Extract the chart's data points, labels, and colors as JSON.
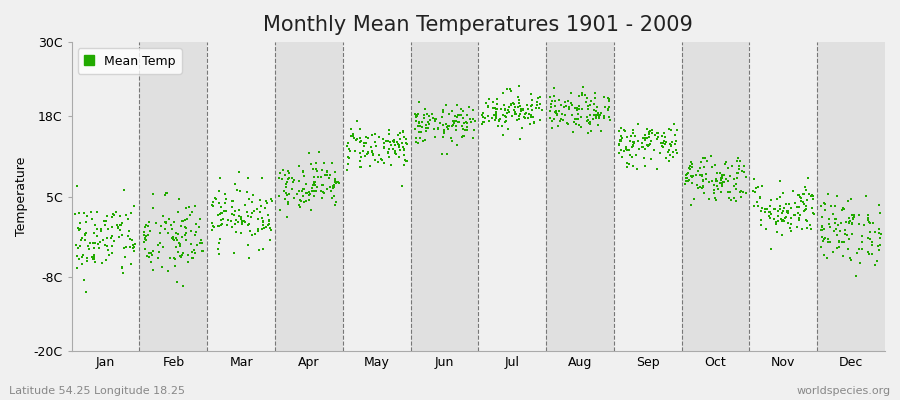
{
  "title": "Monthly Mean Temperatures 1901 - 2009",
  "ylabel": "Temperature",
  "xlabel_labels": [
    "Jan",
    "Feb",
    "Mar",
    "Apr",
    "May",
    "Jun",
    "Jul",
    "Aug",
    "Sep",
    "Oct",
    "Nov",
    "Dec"
  ],
  "ylim": [
    -20,
    30
  ],
  "yticks": [
    -20,
    -8,
    5,
    18,
    30
  ],
  "ytick_labels": [
    "-20C",
    "-8C",
    "5C",
    "18C",
    "30C"
  ],
  "dot_color": "#22aa00",
  "dot_size": 3,
  "legend_label": "Mean Temp",
  "footnote_left": "Latitude 54.25 Longitude 18.25",
  "footnote_right": "worldspecies.org",
  "background_color": "#f0f0f0",
  "band_color_light": "#f0f0f0",
  "band_color_dark": "#e0e0e0",
  "monthly_means": [
    -2.0,
    -2.0,
    2.0,
    7.0,
    13.0,
    16.5,
    19.0,
    18.5,
    13.5,
    8.0,
    3.0,
    -0.5
  ],
  "monthly_stds": [
    3.2,
    3.5,
    2.5,
    2.0,
    1.8,
    1.6,
    1.6,
    1.6,
    1.8,
    2.0,
    2.3,
    2.8
  ],
  "num_years": 109,
  "seed": 42,
  "title_fontsize": 15,
  "footnote_fontsize": 8,
  "axis_label_fontsize": 9,
  "tick_fontsize": 9
}
